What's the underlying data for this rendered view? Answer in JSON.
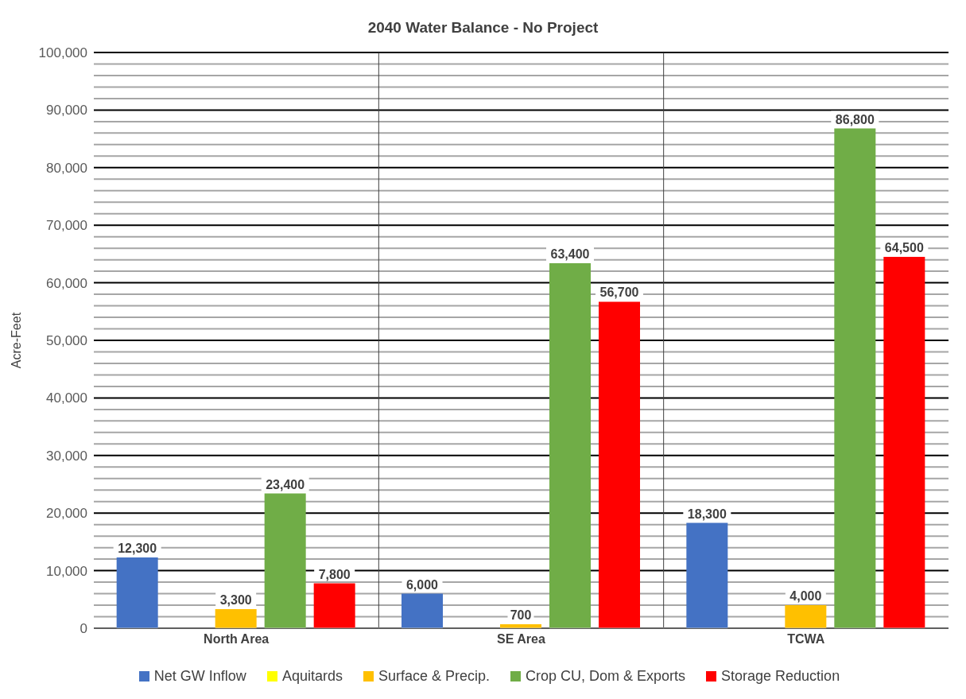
{
  "chart_data": {
    "type": "bar",
    "title": "2040 Water Balance - No Project",
    "ylabel": "Acre-Feet",
    "categories": [
      "North Area",
      "SE Area",
      "TCWA"
    ],
    "series": [
      {
        "name": "Net GW Inflow",
        "color": "#4472c4",
        "values": [
          12300,
          6000,
          18300
        ],
        "value_labels": [
          "12,300",
          "6,000",
          "18,300"
        ]
      },
      {
        "name": "Aquitards",
        "color": "#ffff00",
        "values": [
          null,
          null,
          null
        ]
      },
      {
        "name": "Surface & Precip.",
        "color": "#ffc000",
        "values": [
          3300,
          700,
          4000
        ],
        "value_labels": [
          "3,300",
          "700",
          "4,000"
        ]
      },
      {
        "name": "Crop CU, Dom & Exports",
        "color": "#70ad47",
        "values": [
          23400,
          63400,
          86800
        ],
        "value_labels": [
          "23,400",
          "63,400",
          "86,800"
        ]
      },
      {
        "name": "Storage Reduction",
        "color": "#ff0000",
        "values": [
          7800,
          56700,
          64500
        ],
        "value_labels": [
          "7,800",
          "56,700",
          "64,500"
        ]
      }
    ],
    "ylim": [
      0,
      100000
    ],
    "yticks": [
      0,
      {
        "value": 2000,
        "label": null
      },
      {
        "value": 4000,
        "label": null
      },
      {
        "value": 6000,
        "label": null
      },
      {
        "value": 8000,
        "label": null
      },
      {
        "value": 10000,
        "label": "10,000"
      },
      {
        "value": 12000,
        "label": null
      },
      {
        "value": 14000,
        "label": null
      },
      {
        "value": 16000,
        "label": null
      },
      {
        "value": 18000,
        "label": null
      },
      {
        "value": 20000,
        "label": "20,000"
      },
      {
        "value": 22000,
        "label": null
      },
      {
        "value": 24000,
        "label": null
      },
      {
        "value": 26000,
        "label": null
      },
      {
        "value": 28000,
        "label": null
      },
      {
        "value": 30000,
        "label": "30,000"
      },
      {
        "value": 32000,
        "label": null
      },
      {
        "value": 34000,
        "label": null
      },
      {
        "value": 36000,
        "label": null
      },
      {
        "value": 38000,
        "label": null
      },
      {
        "value": 40000,
        "label": "40,000"
      },
      {
        "value": 42000,
        "label": null
      },
      {
        "value": 44000,
        "label": null
      },
      {
        "value": 46000,
        "label": null
      },
      {
        "value": 48000,
        "label": null
      },
      {
        "value": 50000,
        "label": "50,000"
      },
      {
        "value": 52000,
        "label": null
      },
      {
        "value": 54000,
        "label": null
      },
      {
        "value": 56000,
        "label": null
      },
      {
        "value": 58000,
        "label": null
      },
      {
        "value": 60000,
        "label": "60,000"
      },
      {
        "value": 62000,
        "label": null
      },
      {
        "value": 64000,
        "label": null
      },
      {
        "value": 66000,
        "label": null
      },
      {
        "value": 68000,
        "label": null
      },
      {
        "value": 70000,
        "label": "70,000"
      },
      {
        "value": 72000,
        "label": null
      },
      {
        "value": 74000,
        "label": null
      },
      {
        "value": 76000,
        "label": null
      },
      {
        "value": 78000,
        "label": null
      },
      {
        "value": 80000,
        "label": "80,000"
      },
      {
        "value": 82000,
        "label": null
      },
      {
        "value": 84000,
        "label": null
      },
      {
        "value": 86000,
        "label": null
      },
      {
        "value": 88000,
        "label": null
      },
      {
        "value": 90000,
        "label": "90,000"
      },
      {
        "value": 92000,
        "label": null
      },
      {
        "value": 94000,
        "label": null
      },
      {
        "value": 96000,
        "label": null
      },
      {
        "value": 98000,
        "label": null
      },
      {
        "value": 100000,
        "label": "100,000"
      }
    ],
    "grid": true,
    "legend": "bottom"
  }
}
